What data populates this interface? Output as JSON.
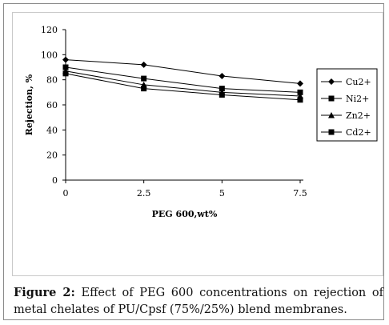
{
  "chart_data": {
    "type": "line",
    "xlabel": "PEG 600,wt%",
    "ylabel": "Rejection, %",
    "x": [
      0,
      2.5,
      5,
      7.5
    ],
    "x_tick_labels": [
      "0",
      "2.5",
      "5",
      "7.5"
    ],
    "y_ticks": [
      0,
      20,
      40,
      60,
      80,
      100,
      120
    ],
    "ylim": [
      0,
      120
    ],
    "grid": false,
    "legend_position": "right",
    "series": [
      {
        "name": "Cu2+",
        "marker": "diamond",
        "values": [
          96,
          92,
          83,
          77
        ]
      },
      {
        "name": "Ni2+",
        "marker": "square",
        "values": [
          90,
          81,
          73,
          70
        ]
      },
      {
        "name": "Zn2+",
        "marker": "triangle",
        "values": [
          87,
          76,
          70,
          67
        ]
      },
      {
        "name": "Cd2+",
        "marker": "square",
        "values": [
          85,
          73,
          68,
          64
        ]
      }
    ],
    "colors": {
      "line": "#000000",
      "marker": "#000000"
    }
  },
  "caption": {
    "label": "Figure 2:",
    "text": " Effect of PEG 600 concentrations on rejection of metal chelates of PU/Cpsf (75%/25%) blend membranes."
  }
}
